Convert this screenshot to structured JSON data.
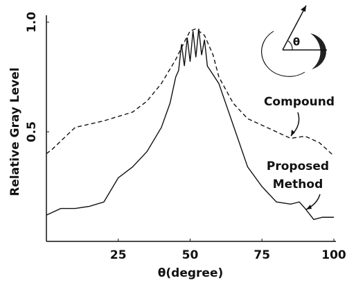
{
  "chart_data": {
    "type": "line",
    "xlabel": "θ(degree)",
    "ylabel": "Relative Gray Level",
    "inset_label": "θ",
    "xlim": [
      0,
      100
    ],
    "xticks": [
      25,
      50,
      75,
      100
    ],
    "ylim": [
      0,
      1
    ],
    "yticks": [
      0.5,
      {
        "value": 1,
        "label": "1.0"
      }
    ],
    "series": [
      {
        "name": "Compound",
        "color": "#111111",
        "style": "dashed",
        "x": [
          0,
          2,
          10,
          20,
          30,
          35,
          40,
          45,
          48,
          50,
          52,
          55,
          58,
          60,
          65,
          70,
          75,
          80,
          85,
          90,
          95,
          100
        ],
        "values": [
          0.4,
          0.42,
          0.52,
          0.55,
          0.59,
          0.64,
          0.72,
          0.83,
          0.91,
          0.96,
          0.97,
          0.94,
          0.85,
          0.75,
          0.63,
          0.56,
          0.53,
          0.5,
          0.47,
          0.48,
          0.45,
          0.39
        ]
      },
      {
        "name": "Proposed Method",
        "color": "#111111",
        "style": "solid",
        "x": [
          0,
          5,
          10,
          15,
          20,
          25,
          30,
          35,
          40,
          43,
          45,
          46,
          47,
          48,
          49,
          50,
          51,
          52,
          53,
          54,
          55,
          56,
          57,
          60,
          65,
          70,
          75,
          80,
          85,
          88,
          90,
          93,
          96,
          100
        ],
        "values": [
          0.12,
          0.15,
          0.15,
          0.16,
          0.18,
          0.29,
          0.34,
          0.41,
          0.52,
          0.63,
          0.75,
          0.78,
          0.9,
          0.8,
          0.93,
          0.82,
          0.96,
          0.84,
          0.97,
          0.85,
          0.92,
          0.8,
          0.78,
          0.72,
          0.53,
          0.34,
          0.25,
          0.18,
          0.17,
          0.18,
          0.15,
          0.1,
          0.11,
          0.11
        ]
      }
    ]
  }
}
